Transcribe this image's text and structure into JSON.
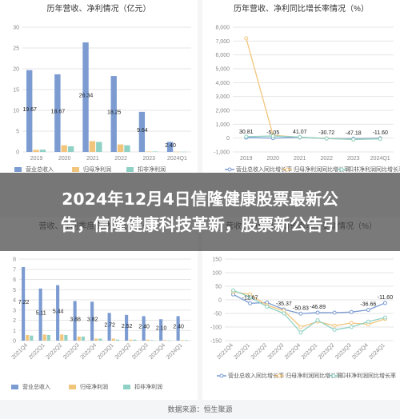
{
  "banner": {
    "title_line1": "2024年12月4日信隆健康股票最新公",
    "title_line2": "告，信隆健康科技革新，股票新公告引"
  },
  "footer": {
    "source": "数据来源：恒生聚源"
  },
  "colors": {
    "revenue": "#7b9bd1",
    "net_profit": "#f2c57c",
    "deducted_profit": "#8fd1c4",
    "grid": "#e6e6e6"
  },
  "chart_data": [
    {
      "type": "bar",
      "title": "历年营收、净利情况（亿元）",
      "categories": [
        "2019",
        "2020",
        "2021",
        "2022",
        "2023",
        "2024Q1"
      ],
      "yticks": [
        "0",
        "5",
        "10",
        "15",
        "20",
        "25",
        "30"
      ],
      "ylim": [
        0,
        30
      ],
      "series": [
        {
          "name": "营业总收入",
          "values": [
            19.67,
            18.67,
            26.34,
            18.25,
            9.64,
            2.4
          ]
        },
        {
          "name": "归母净利润",
          "values": [
            0.5,
            1.6,
            2.6,
            1.8,
            0.1,
            0.05
          ]
        },
        {
          "name": "扣非净利润",
          "values": [
            0.55,
            1.35,
            2.4,
            1.6,
            0.1,
            0.05
          ]
        }
      ],
      "value_labels": [
        "19.67",
        "18.67",
        "26.34",
        "18.25",
        "9.64",
        "2.40"
      ]
    },
    {
      "type": "line",
      "title": "历年营收、净利同比增长率情况（%）",
      "categories": [
        "2019",
        "2020",
        "2021",
        "2022",
        "2023",
        "2024Q1"
      ],
      "yticks": [
        "-1,000",
        "0",
        "1,000",
        "2,000",
        "3,000",
        "4,000",
        "5,000",
        "6,000",
        "7,000",
        "8,000"
      ],
      "ylim": [
        -1000,
        8000
      ],
      "series": [
        {
          "name": "营业总收入同比增长率",
          "values": [
            30.81,
            -5.05,
            41.07,
            -30.72,
            -47.18,
            -11.6
          ]
        },
        {
          "name": "归母净利润同比增长率",
          "values": [
            7200,
            200,
            60,
            -30,
            -95,
            -50
          ]
        },
        {
          "name": "扣非净利润同比增长率",
          "values": [
            100,
            150,
            70,
            -35,
            -98,
            -60
          ]
        }
      ],
      "value_labels": [
        "30.81",
        "-5.05",
        "41.07",
        "-30.72",
        "-47.18",
        "-11.60"
      ]
    },
    {
      "type": "bar",
      "title": "营收、净利季度变动情况（亿元）",
      "categories": [
        "2021Q4",
        "2022Q1",
        "2022Q2",
        "2022Q3",
        "2022Q4",
        "2023Q1",
        "2023Q2",
        "2023Q3",
        "2023Q4",
        "2024Q1"
      ],
      "yticks": [
        "0",
        "1",
        "2",
        "3",
        "4",
        "5",
        "6",
        "7",
        "8"
      ],
      "ylim": [
        0,
        8
      ],
      "series": [
        {
          "name": "营业总收入",
          "values": [
            7.22,
            5.11,
            5.44,
            3.88,
            3.82,
            2.72,
            2.52,
            2.4,
            2.1,
            2.4
          ]
        },
        {
          "name": "归母净利润",
          "values": [
            0.55,
            0.6,
            0.6,
            0.4,
            0.2,
            0.2,
            0.1,
            0.1,
            0.05,
            0.05
          ]
        },
        {
          "name": "扣非净利润",
          "values": [
            0.5,
            0.55,
            0.55,
            0.4,
            0.2,
            0.1,
            0.1,
            0.05,
            0.02,
            0.05
          ]
        }
      ],
      "value_labels": [
        "7.22",
        "5.11",
        "5.44",
        "3.88",
        "3.82",
        "2.72",
        "2.52",
        "2.40",
        "2.10",
        "2.40"
      ]
    },
    {
      "type": "line",
      "title": "营收、净利同比增长率季度变动情况（%）",
      "categories": [
        "2021Q4",
        "2022Q1",
        "2022Q2",
        "2022Q3",
        "2022Q4",
        "2023Q1",
        "2023Q2",
        "2023Q3",
        "2023Q4",
        "2024Q1"
      ],
      "yticks": [
        "-150",
        "-100",
        "-50",
        "0",
        "50",
        "100",
        "150"
      ],
      "ylim": [
        -150,
        150
      ],
      "series": [
        {
          "name": "营业总收入同比增长率",
          "values": [
            20,
            -12.67,
            -10,
            -35.37,
            -50.83,
            -46.89,
            -47,
            -45,
            -36.66,
            -11.6
          ]
        },
        {
          "name": "归母净利润同比增长率",
          "values": [
            30,
            20,
            -20,
            -40,
            -100,
            -80,
            -95,
            -85,
            -90,
            -70
          ]
        },
        {
          "name": "扣非净利润同比增长率",
          "values": [
            35,
            10,
            -25,
            -50,
            -120,
            -75,
            -110,
            -100,
            -80,
            -65
          ]
        }
      ],
      "value_labels": [
        "-12.67",
        "-35.37",
        "-50.83",
        "-46.89",
        "-36.66",
        "-11.60"
      ]
    }
  ]
}
